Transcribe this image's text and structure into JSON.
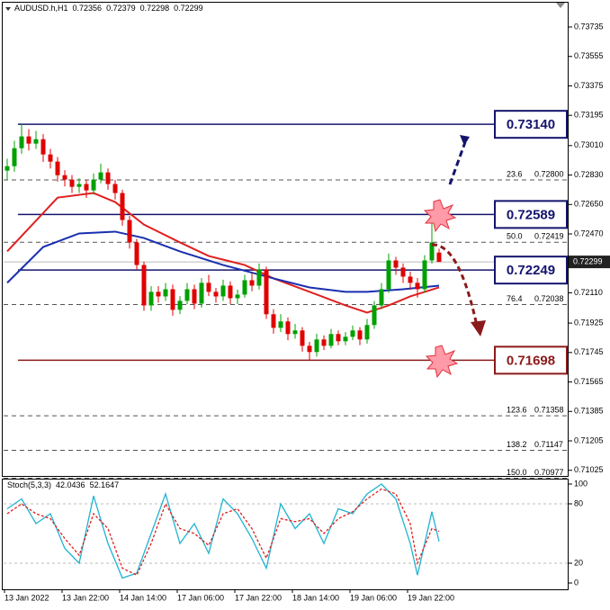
{
  "chart_data": [
    {
      "type": "candlestick",
      "symbol": "AUDUSD.h,H1",
      "categories": [
        "13 Jan 2022",
        null,
        null,
        null,
        null,
        null,
        null,
        null,
        "13 Jan 22:00",
        null,
        null,
        null,
        null,
        null,
        null,
        null,
        "14 Jan 14:00",
        null,
        null,
        null,
        null,
        null,
        null,
        null,
        "17 Jan 06:00",
        null,
        null,
        null,
        null,
        null,
        null,
        null,
        "17 Jan 22:00",
        null,
        null,
        null,
        null,
        null,
        null,
        null,
        "18 Jan 14:00",
        null,
        null,
        null,
        null,
        null,
        null,
        null,
        "19 Jan 06:00",
        null,
        null,
        null,
        null,
        null,
        null,
        null,
        "19 Jan 22:00",
        null,
        null,
        null,
        null
      ],
      "open": [
        0.72857,
        0.72884,
        0.72994,
        0.73066,
        0.73022,
        0.73049,
        0.72956,
        0.72912,
        0.72829,
        0.72802,
        0.72758,
        0.72775,
        0.72736,
        0.72802,
        0.72846,
        0.72775,
        0.7272,
        0.72555,
        0.72418,
        0.7228,
        0.72033,
        0.72116,
        0.72088,
        0.72132,
        0.72006,
        0.72061,
        0.72132,
        0.72044,
        0.72171,
        0.72116,
        0.72088,
        0.72154,
        0.72077,
        0.72099,
        0.72187,
        0.72154,
        0.72253,
        0.71979,
        0.71896,
        0.71935,
        0.71858,
        0.7188,
        0.71786,
        0.71748,
        0.71825,
        0.71786,
        0.71858,
        0.71814,
        0.71841,
        0.7188,
        0.71825,
        0.71913,
        0.72033,
        0.72132,
        0.72308,
        0.72264,
        0.72209,
        0.72171,
        0.72132,
        0.72308,
        0.72356
      ],
      "high": [
        0.7293,
        0.7304,
        0.7314,
        0.7311,
        0.731,
        0.7308,
        0.7299,
        0.7294,
        0.7286,
        0.7283,
        0.7281,
        0.728,
        0.7284,
        0.729,
        0.7287,
        0.728,
        0.7274,
        0.7258,
        0.7244,
        0.723,
        0.7215,
        0.7215,
        0.7217,
        0.7216,
        0.7209,
        0.7217,
        0.7216,
        0.722,
        0.7222,
        0.7214,
        0.7219,
        0.7218,
        0.7213,
        0.7222,
        0.7223,
        0.7229,
        0.7227,
        0.7201,
        0.7198,
        0.7196,
        0.7192,
        0.719,
        0.7181,
        0.7186,
        0.7185,
        0.7189,
        0.7188,
        0.7187,
        0.7191,
        0.719,
        0.7195,
        0.7206,
        0.7217,
        0.7235,
        0.7233,
        0.7229,
        0.7224,
        0.722,
        0.7234,
        0.72589,
        0.72379
      ],
      "low": [
        0.728,
        0.7285,
        0.7296,
        0.7298,
        0.7299,
        0.7291,
        0.7287,
        0.7279,
        0.7276,
        0.7272,
        0.7272,
        0.7269,
        0.7271,
        0.7278,
        0.7274,
        0.7268,
        0.7252,
        0.7238,
        0.7225,
        0.72,
        0.72,
        0.7205,
        0.7206,
        0.7197,
        0.7198,
        0.7204,
        0.7201,
        0.7202,
        0.7209,
        0.7205,
        0.7206,
        0.7204,
        0.7204,
        0.7208,
        0.7212,
        0.7213,
        0.7195,
        0.7186,
        0.7187,
        0.7182,
        0.7183,
        0.7175,
        0.71698,
        0.7172,
        0.7176,
        0.7177,
        0.7179,
        0.7179,
        0.7182,
        0.7179,
        0.718,
        0.7189,
        0.7201,
        0.7211,
        0.7222,
        0.7217,
        0.7213,
        0.7208,
        0.7211,
        0.7229,
        0.72298
      ],
      "close": [
        0.72884,
        0.72994,
        0.73066,
        0.73022,
        0.73049,
        0.72956,
        0.72912,
        0.72829,
        0.72802,
        0.72758,
        0.72775,
        0.72736,
        0.72802,
        0.72846,
        0.72775,
        0.7272,
        0.72555,
        0.72418,
        0.7228,
        0.72033,
        0.72116,
        0.72088,
        0.72132,
        0.72006,
        0.72061,
        0.72132,
        0.72044,
        0.72171,
        0.72116,
        0.72088,
        0.72154,
        0.72077,
        0.72099,
        0.72187,
        0.72154,
        0.72253,
        0.71979,
        0.71896,
        0.71935,
        0.71858,
        0.7188,
        0.71786,
        0.71748,
        0.71825,
        0.71786,
        0.71858,
        0.71814,
        0.71841,
        0.7188,
        0.71825,
        0.71913,
        0.72033,
        0.72132,
        0.72308,
        0.72264,
        0.72209,
        0.72171,
        0.72132,
        0.72308,
        0.72418,
        0.72299
      ],
      "up_color": "#00a000",
      "down_color": "#e00000",
      "lines": [
        {
          "color": "#e02020",
          "x": [
            0,
            7,
            12,
            15,
            19,
            24,
            28,
            33,
            37,
            42,
            47,
            50,
            53,
            56,
            60
          ],
          "values": [
            0.72363,
            0.72692,
            0.7272,
            0.72665,
            0.72527,
            0.72418,
            0.72335,
            0.7228,
            0.72198,
            0.72116,
            0.72033,
            0.71989,
            0.72033,
            0.72088,
            0.72143
          ]
        },
        {
          "color": "#1a2fb0",
          "x": [
            0,
            5,
            10,
            15,
            19,
            24,
            30,
            37,
            42,
            47,
            50,
            55,
            60
          ],
          "values": [
            0.72171,
            0.7239,
            0.72473,
            0.72484,
            0.72445,
            0.72363,
            0.7228,
            0.72198,
            0.72143,
            0.72116,
            0.72116,
            0.72132,
            0.72154
          ]
        }
      ],
      "levels": [
        {
          "value": 0.7314,
          "label": "0.73140",
          "color": "#14146e"
        },
        {
          "value": 0.72589,
          "label": "0.72589",
          "color": "#14146e"
        },
        {
          "value": 0.72249,
          "label": "0.72249",
          "color": "#14146e"
        },
        {
          "value": 0.71698,
          "label": "0.71698",
          "color": "#8b1a1a"
        }
      ],
      "fib_levels": [
        {
          "ratio": "23.6",
          "value": 0.728,
          "label": "0.72800"
        },
        {
          "ratio": "50.0",
          "value": 0.72419,
          "label": "0.72419"
        },
        {
          "ratio": "76.4",
          "value": 0.72038,
          "label": "0.72038"
        },
        {
          "ratio": "123.6",
          "value": 0.71358,
          "label": "0.71358"
        },
        {
          "ratio": "138.2",
          "value": 0.71147,
          "label": "0.71147"
        },
        {
          "ratio": "150.0",
          "value": 0.70977,
          "label": "0.70977"
        }
      ],
      "ylim": [
        0.70985,
        0.73856
      ],
      "yticks": [
        0.73735,
        0.73555,
        0.73375,
        0.73195,
        {
          "value": 0.7301,
          "label": "0.73010"
        },
        {
          "value": 0.7283,
          "label": "0.72830"
        },
        {
          "value": 0.7265,
          "label": "0.72650"
        },
        {
          "value": 0.7247,
          "label": "0.72470"
        },
        {
          "value": 0.7211,
          "label": "0.72110"
        },
        0.71925,
        0.71745,
        0.71565,
        0.71385,
        0.71205,
        0.71025
      ]
    },
    {
      "type": "line",
      "title": "Stoch(5,3,3)",
      "x": [
        0,
        2,
        4,
        6,
        8,
        10,
        12,
        14,
        16,
        18,
        20,
        22,
        24,
        26,
        28,
        30,
        32,
        34,
        36,
        38,
        40,
        42,
        44,
        46,
        48,
        50,
        52,
        54,
        56,
        57,
        59,
        60
      ],
      "xlim": [
        0,
        60
      ],
      "series": [
        {
          "color": "#1fb4d0",
          "values": [
            75,
            85,
            60,
            70,
            35,
            20,
            88,
            40,
            5,
            10,
            50,
            90,
            40,
            60,
            30,
            85,
            70,
            45,
            15,
            80,
            55,
            70,
            40,
            75,
            70,
            90,
            100,
            85,
            40,
            8,
            72,
            42.0436
          ]
        },
        {
          "color": "#e02020",
          "dashed": true,
          "values": [
            70,
            80,
            70,
            65,
            45,
            28,
            70,
            55,
            15,
            8,
            40,
            80,
            55,
            50,
            38,
            70,
            75,
            55,
            25,
            65,
            62,
            65,
            50,
            65,
            72,
            85,
            95,
            90,
            60,
            20,
            55,
            52.1647
          ]
        }
      ],
      "ylim": [
        0,
        100
      ],
      "yticks": [
        0,
        20,
        80,
        100
      ]
    }
  ]
}
